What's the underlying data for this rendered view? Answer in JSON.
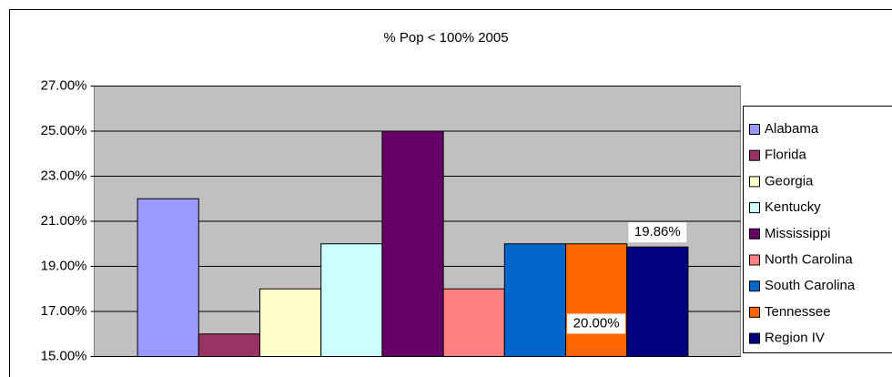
{
  "chart_data": {
    "type": "bar",
    "title": "% Pop < 100%  2005",
    "series": [
      {
        "name": "Alabama",
        "color": "#9999ff",
        "values": [
          22
        ]
      },
      {
        "name": "Florida",
        "color": "#993366",
        "values": [
          16
        ]
      },
      {
        "name": "Georgia",
        "color": "#ffffcc",
        "values": [
          18
        ]
      },
      {
        "name": "Kentucky",
        "color": "#ccffff",
        "values": [
          20
        ]
      },
      {
        "name": "Mississippi",
        "color": "#660066",
        "values": [
          25
        ]
      },
      {
        "name": "North Carolina",
        "color": "#ff8080",
        "values": [
          18
        ]
      },
      {
        "name": "South Carolina",
        "color": "#0066cc",
        "values": [
          20
        ]
      },
      {
        "name": "Tennessee",
        "color": "#ff6600",
        "values": [
          20
        ],
        "value_labels": [
          "20.00%"
        ]
      },
      {
        "name": "Region IV",
        "color": "#000080",
        "values": [
          19.86
        ],
        "value_labels": [
          "19.86%"
        ]
      }
    ],
    "ylim": [
      15,
      27
    ],
    "yticks": [
      {
        "value": 15,
        "label": "15.00%"
      },
      {
        "value": 17,
        "label": "17.00%"
      },
      {
        "value": 19,
        "label": "19.00%"
      },
      {
        "value": 21,
        "label": "21.00%"
      },
      {
        "value": 23,
        "label": "23.00%"
      },
      {
        "value": 25,
        "label": "25.00%"
      },
      {
        "value": 27,
        "label": "27.00%"
      }
    ],
    "grid": true,
    "legend": "right"
  }
}
